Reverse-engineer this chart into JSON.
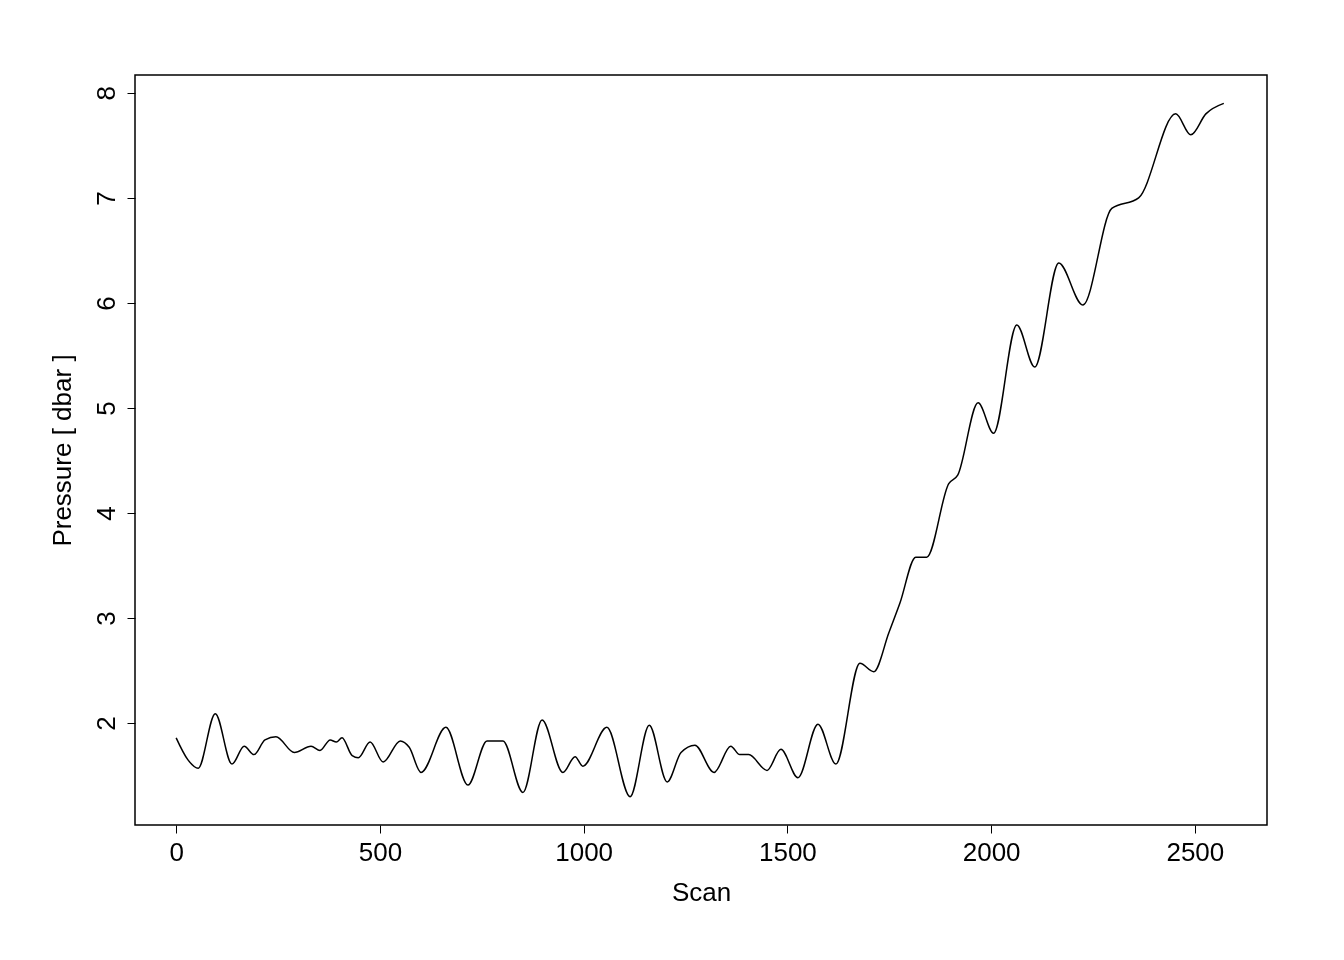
{
  "chart_data": {
    "type": "line",
    "xlabel": "Scan",
    "ylabel": "Pressure [ dbar ]",
    "xlim": [
      -101,
      2677
    ],
    "ylim": [
      1.03,
      8.17
    ],
    "xticks": [
      0,
      500,
      1000,
      1500,
      2000,
      2500
    ],
    "yticks": [
      2,
      3,
      4,
      5,
      6,
      7,
      8
    ],
    "grid": false,
    "marker": "none",
    "line_style": "solid",
    "series": [
      {
        "color": "#000000",
        "x": [
          0,
          29,
          54,
          96,
          137,
          167,
          191,
          218,
          245,
          290,
          331,
          353,
          378,
          393,
          407,
          432,
          447,
          476,
          508,
          550,
          572,
          601,
          662,
          716,
          763,
          802,
          851,
          898,
          949,
          979,
          998,
          1057,
          1114,
          1161,
          1205,
          1239,
          1273,
          1320,
          1361,
          1383,
          1405,
          1450,
          1484,
          1526,
          1575,
          1619,
          1678,
          1712,
          1749,
          1776,
          1815,
          1842,
          1896,
          1918,
          1968,
          2006,
          2063,
          2107,
          2166,
          2225,
          2296,
          2362,
          2453,
          2490,
          2527,
          2571
        ],
        "values": [
          1.86,
          1.65,
          1.57,
          2.09,
          1.61,
          1.78,
          1.7,
          1.84,
          1.87,
          1.72,
          1.78,
          1.74,
          1.84,
          1.82,
          1.86,
          1.69,
          1.67,
          1.82,
          1.63,
          1.83,
          1.77,
          1.53,
          1.96,
          1.41,
          1.83,
          1.83,
          1.34,
          2.03,
          1.53,
          1.68,
          1.59,
          1.96,
          1.3,
          1.98,
          1.44,
          1.72,
          1.79,
          1.53,
          1.78,
          1.7,
          1.7,
          1.55,
          1.75,
          1.48,
          1.99,
          1.61,
          2.57,
          2.49,
          2.86,
          3.14,
          3.58,
          3.58,
          4.28,
          4.36,
          5.05,
          4.76,
          5.79,
          5.39,
          6.38,
          5.98,
          6.9,
          7.0,
          7.8,
          7.6,
          7.8,
          7.9
        ]
      }
    ]
  }
}
